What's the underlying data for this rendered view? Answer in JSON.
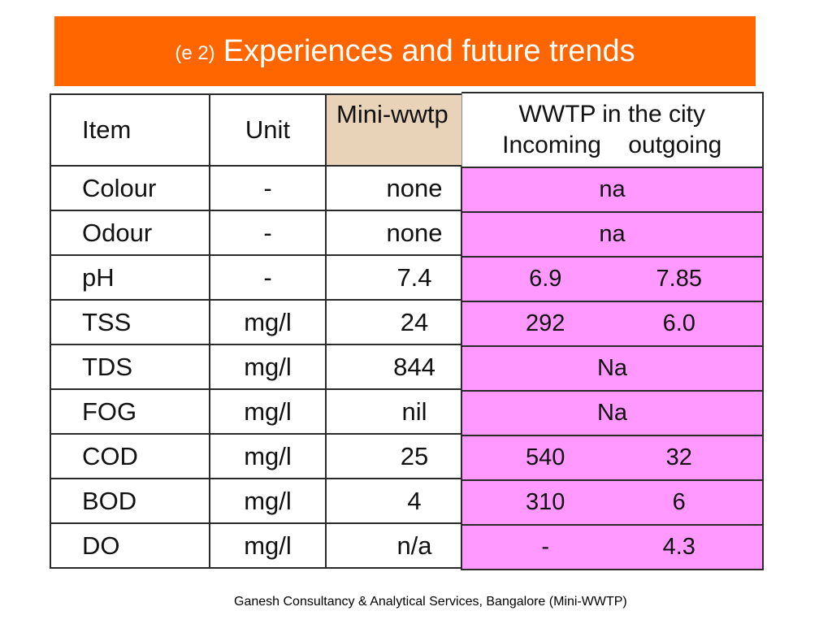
{
  "title": {
    "prefix": "(e 2)",
    "main": "Experiences and future trends"
  },
  "left_table": {
    "headers": {
      "item": "Item",
      "unit": "Unit",
      "mini": "Mini-wwtp"
    },
    "rows": [
      {
        "item": "Colour",
        "unit": "-",
        "mini": "none"
      },
      {
        "item": "Odour",
        "unit": "-",
        "mini": "none"
      },
      {
        "item": "pH",
        "unit": "-",
        "mini": "7.4"
      },
      {
        "item": "TSS",
        "unit": "mg/l",
        "mini": "24"
      },
      {
        "item": "TDS",
        "unit": "mg/l",
        "mini": "844"
      },
      {
        "item": "FOG",
        "unit": "mg/l",
        "mini": "nil"
      },
      {
        "item": "COD",
        "unit": "mg/l",
        "mini": "25"
      },
      {
        "item": "BOD",
        "unit": "mg/l",
        "mini": "4"
      },
      {
        "item": "DO",
        "unit": "mg/l",
        "mini": "n/a"
      }
    ]
  },
  "right_table": {
    "header_line1": "WWTP in the city",
    "header_line2": "Incoming    outgoing",
    "rows": [
      {
        "merged": "na"
      },
      {
        "merged": "na"
      },
      {
        "incoming": "6.9",
        "outgoing": "7.85"
      },
      {
        "incoming": "292",
        "outgoing": "6.0"
      },
      {
        "merged": "Na"
      },
      {
        "merged": "Na"
      },
      {
        "incoming": "540",
        "outgoing": "32"
      },
      {
        "incoming": "310",
        "outgoing": "6"
      },
      {
        "incoming": "-",
        "outgoing": "4.3"
      }
    ]
  },
  "footer": "Ganesh Consultancy & Analytical Services, Bangalore (Mini-WWTP)",
  "colors": {
    "title_bg": "#ff6600",
    "mini_header_bg": "#e8d2b8",
    "city_cells_bg": "#ff99ff"
  }
}
